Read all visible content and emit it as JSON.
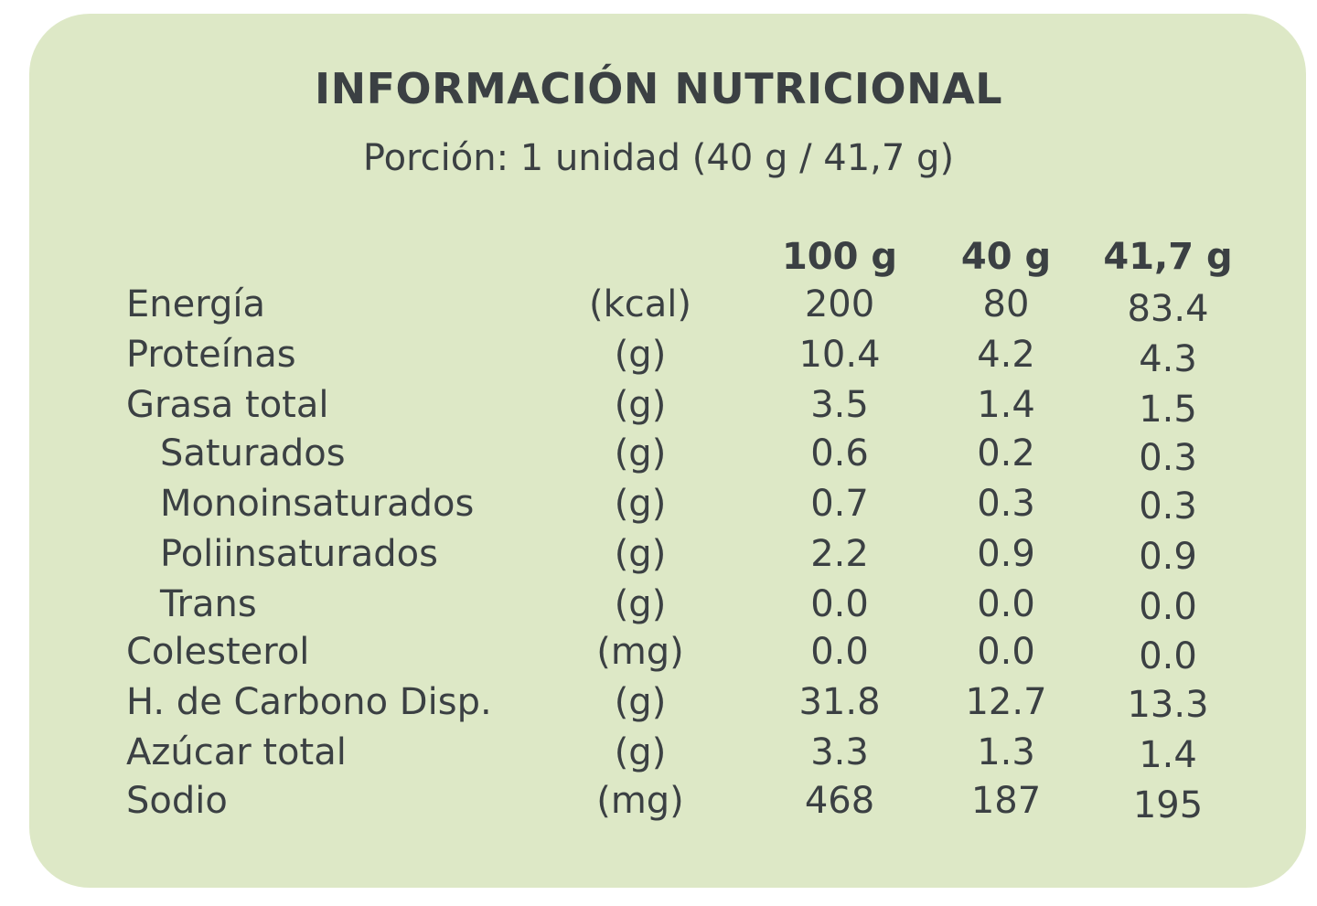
{
  "panel": {
    "title": "INFORMACIÓN NUTRICIONAL",
    "serving": "Porción: 1 unidad (40 g / 41,7 g)",
    "colors": {
      "background": "#dde8c6",
      "text": "#3b4043"
    }
  },
  "table": {
    "headers": [
      "100 g",
      "40 g",
      "41,7 g"
    ],
    "rows": [
      {
        "name": "Energía",
        "unit": "(kcal)",
        "v100": "200",
        "v40": "80",
        "v417": "83.4",
        "indent": false
      },
      {
        "name": "Proteínas",
        "unit": "(g)",
        "v100": "10.4",
        "v40": "4.2",
        "v417": "4.3",
        "indent": false
      },
      {
        "name": "Grasa total",
        "unit": "(g)",
        "v100": "3.5",
        "v40": "1.4",
        "v417": "1.5",
        "indent": false
      },
      {
        "name": "Saturados",
        "unit": "(g)",
        "v100": "0.6",
        "v40": "0.2",
        "v417": "0.3",
        "indent": true
      },
      {
        "name": "Monoinsaturados",
        "unit": "(g)",
        "v100": "0.7",
        "v40": "0.3",
        "v417": "0.3",
        "indent": true
      },
      {
        "name": "Poliinsaturados",
        "unit": "(g)",
        "v100": "2.2",
        "v40": "0.9",
        "v417": "0.9",
        "indent": true
      },
      {
        "name": "Trans",
        "unit": "(g)",
        "v100": "0.0",
        "v40": "0.0",
        "v417": "0.0",
        "indent": true
      },
      {
        "name": "Colesterol",
        "unit": "(mg)",
        "v100": "0.0",
        "v40": "0.0",
        "v417": "0.0",
        "indent": false
      },
      {
        "name": "H. de Carbono Disp.",
        "unit": "(g)",
        "v100": "31.8",
        "v40": "12.7",
        "v417": "13.3",
        "indent": false
      },
      {
        "name": "Azúcar total",
        "unit": "(g)",
        "v100": "3.3",
        "v40": "1.3",
        "v417": "1.4",
        "indent": false
      },
      {
        "name": "Sodio",
        "unit": "(mg)",
        "v100": "468",
        "v40": "187",
        "v417": "195",
        "indent": false
      }
    ]
  }
}
